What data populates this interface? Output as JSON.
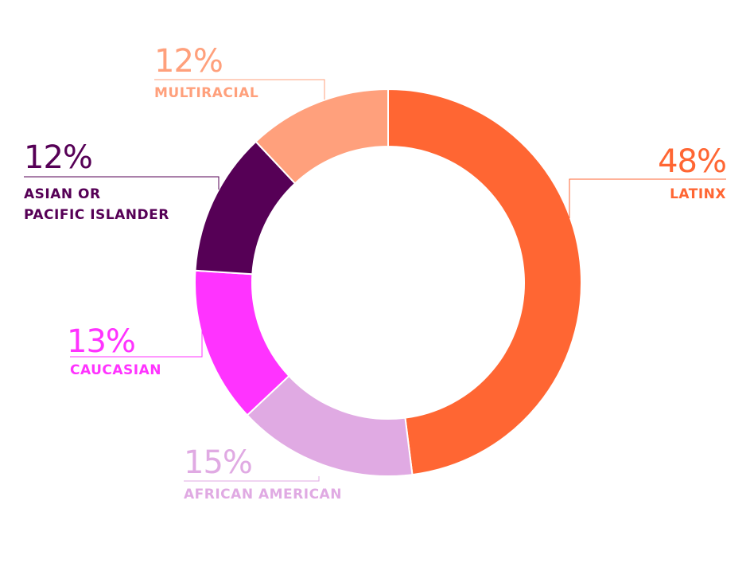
{
  "chart_data": {
    "type": "pie",
    "donut": true,
    "categories": [
      "LATINX",
      "AFRICAN AMERICAN",
      "CAUCASIAN",
      "ASIAN OR PACIFIC ISLANDER",
      "MULTIRACIAL"
    ],
    "values": [
      48,
      15,
      13,
      12,
      12
    ],
    "labels": [
      {
        "value_text": "48%",
        "lines": [
          "LATINX"
        ]
      },
      {
        "value_text": "15%",
        "lines": [
          "AFRICAN AMERICAN"
        ]
      },
      {
        "value_text": "13%",
        "lines": [
          "CAUCASIAN"
        ]
      },
      {
        "value_text": "12%",
        "lines": [
          "ASIAN OR",
          "PACIFIC ISLANDER"
        ]
      },
      {
        "value_text": "12%",
        "lines": [
          "MULTIRACIAL"
        ]
      }
    ],
    "colors": [
      "#ff6633",
      "#e0aae3",
      "#ff33ff",
      "#560056",
      "#ffa07c"
    ],
    "label_text_colors": [
      "#ff6633",
      "#e0aae3",
      "#ff33ff",
      "#560056",
      "#ffa07c"
    ],
    "start": "12 o'clock",
    "direction": "clockwise"
  }
}
